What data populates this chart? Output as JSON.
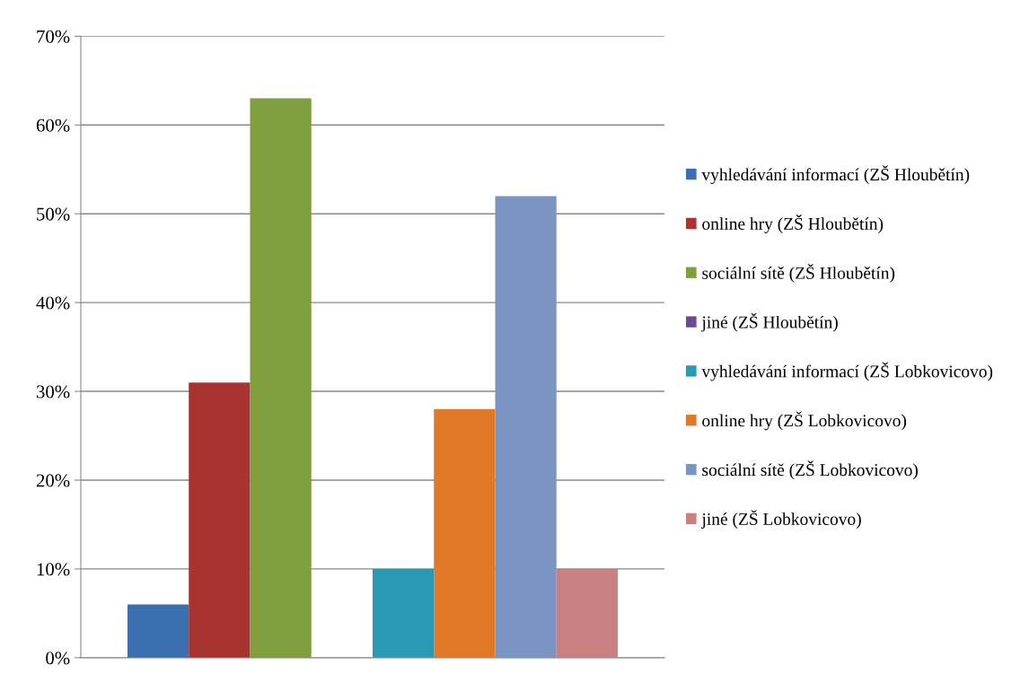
{
  "chart_data": {
    "type": "bar",
    "categories": [
      null
    ],
    "series": [
      {
        "name": "vyhledávání informací (ZŠ Hloubětín)",
        "color": "#3a6fb0",
        "values": [
          6
        ]
      },
      {
        "name": "online hry (ZŠ Hloubětín)",
        "color": "#a83432",
        "values": [
          31
        ]
      },
      {
        "name": "sociální sítě (ZŠ Hloubětín)",
        "color": "#7f9f3e",
        "values": [
          63
        ]
      },
      {
        "name": "jiné (ZŠ Hloubětín)",
        "color": "#6a4b8f",
        "values": [
          0
        ]
      },
      {
        "name": "vyhledávání informací (ZŠ Lobkovicovo)",
        "color": "#2a9ab4",
        "values": [
          10
        ]
      },
      {
        "name": "online hry (ZŠ Lobkovicovo)",
        "color": "#e07a28",
        "values": [
          28
        ]
      },
      {
        "name": "sociální sítě (ZŠ Lobkovicovo)",
        "color": "#7b95c3",
        "values": [
          52
        ]
      },
      {
        "name": "jiné (ZŠ Lobkovicovo)",
        "color": "#c98080",
        "values": [
          10
        ]
      }
    ],
    "ylim": [
      0,
      70
    ],
    "yticks": [
      {
        "value": 0,
        "label": "0%"
      },
      {
        "value": 10,
        "label": "10%"
      },
      {
        "value": 20,
        "label": "20%"
      },
      {
        "value": 30,
        "label": "30%"
      },
      {
        "value": 40,
        "label": "40%"
      },
      {
        "value": 50,
        "label": "50%"
      },
      {
        "value": 60,
        "label": "60%"
      },
      {
        "value": 70,
        "label": "70%"
      }
    ],
    "grid": "y",
    "legend": "right"
  }
}
